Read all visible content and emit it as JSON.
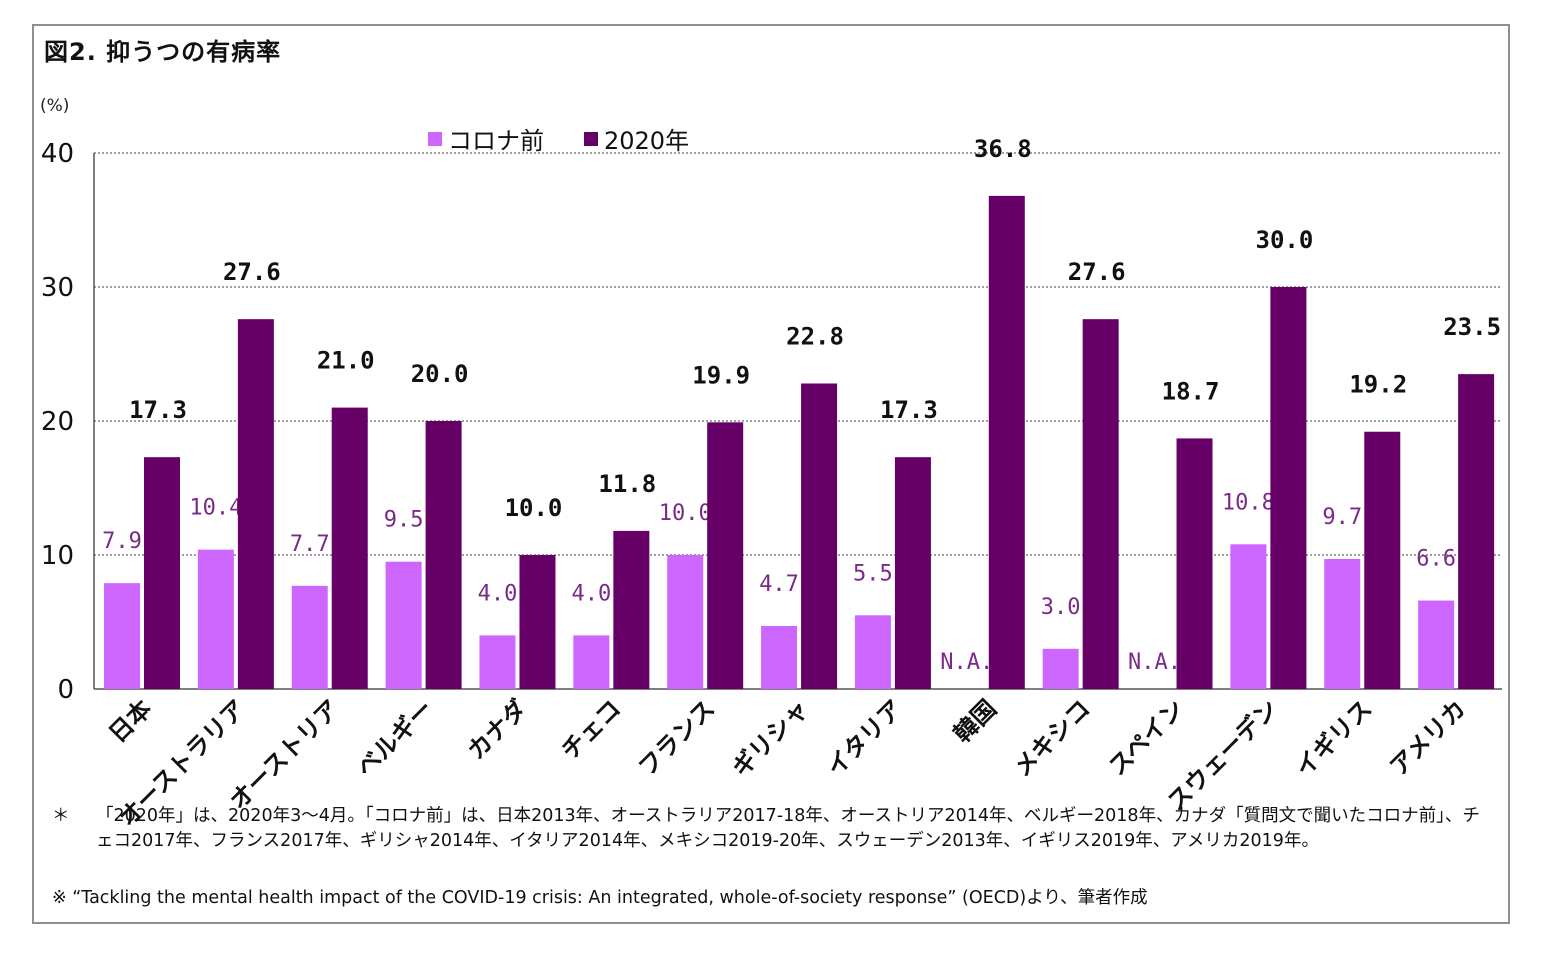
{
  "title": "図2. 抑うつの有病率",
  "unit_label": "(%)",
  "legend": [
    {
      "label": "コロナ前",
      "color": "#cc66ff"
    },
    {
      "label": "2020年",
      "color": "#660066"
    }
  ],
  "chart_data": {
    "type": "bar",
    "title": "図2. 抑うつの有病率",
    "ylabel": "(%)",
    "ylim": [
      0,
      40
    ],
    "yticks": [
      "0",
      "10",
      "20",
      "30",
      "40"
    ],
    "grid": true,
    "legend_position": "top-center",
    "categories": [
      "日本",
      "オーストラリア",
      "オーストリア",
      "ベルギー",
      "カナダ",
      "チェコ",
      "フランス",
      "ギリシャ",
      "イタリア",
      "韓国",
      "メキシコ",
      "スペイン",
      "スウェーデン",
      "イギリス",
      "アメリカ"
    ],
    "series": [
      {
        "name": "コロナ前",
        "color": "#cc66ff",
        "label_color": "#7a2a88",
        "values": [
          7.9,
          10.4,
          7.7,
          9.5,
          4.0,
          4.0,
          10.0,
          4.7,
          5.5,
          null,
          3.0,
          null,
          10.8,
          9.7,
          6.6
        ],
        "labels": [
          "7.9",
          "10.4",
          "7.7",
          "9.5",
          "4.0",
          "4.0",
          "10.0",
          "4.7",
          "5.5",
          "N.A.",
          "3.0",
          "N.A.",
          "10.8",
          "9.7",
          "6.6"
        ]
      },
      {
        "name": "2020年",
        "color": "#660066",
        "label_color": "#111111",
        "values": [
          17.3,
          27.6,
          21.0,
          20.0,
          10.0,
          11.8,
          19.9,
          22.8,
          17.3,
          36.8,
          27.6,
          18.7,
          30.0,
          19.2,
          23.5
        ],
        "labels": [
          "17.3",
          "27.6",
          "21.0",
          "20.0",
          "10.0",
          "11.8",
          "19.9",
          "22.8",
          "17.3",
          "36.8",
          "27.6",
          "18.7",
          "30.0",
          "19.2",
          "23.5"
        ]
      }
    ]
  },
  "notes": {
    "note1_mark": "＊",
    "note1": "「2020年」は、2020年3～4月。「コロナ前」は、日本2013年、オーストラリア2017-18年、オーストリア2014年、ベルギー2018年、カナダ「質問文で聞いたコロナ前」、チェコ2017年、フランス2017年、ギリシャ2014年、イタリア2014年、メキシコ2019-20年、スウェーデン2013年、イギリス2019年、アメリカ2019年。",
    "note2": "※ “Tackling the mental health impact of the COVID-19 crisis: An integrated, whole-of-society response” (OECD)より、筆者作成"
  }
}
